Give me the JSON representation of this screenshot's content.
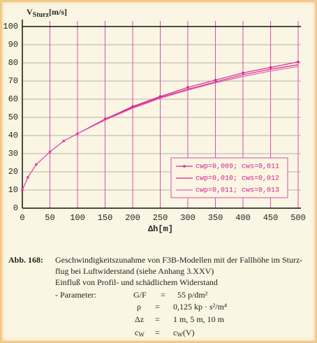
{
  "chart_data": {
    "type": "line",
    "ylabel": "V",
    "ylabel_sub": "Sturz",
    "ylabel_unit": "[m/s]",
    "xlabel": "Δh[m]",
    "x": [
      0,
      10,
      25,
      50,
      75,
      100,
      150,
      200,
      250,
      300,
      350,
      400,
      450,
      500
    ],
    "series": [
      {
        "name": "cwp=0,009; cws=0,011",
        "color": "#d9228f",
        "markers": true,
        "values": [
          10,
          17,
          24,
          31,
          37,
          41,
          49,
          56,
          61.5,
          66.5,
          70.5,
          74.5,
          77.5,
          80.5
        ]
      },
      {
        "name": "cwp=0,010; cws=0,012",
        "color": "#d9228f",
        "markers": false,
        "values": [
          10,
          17,
          24,
          31,
          37,
          41,
          49,
          55.5,
          61,
          65.5,
          69.5,
          73.5,
          76.5,
          79
        ]
      },
      {
        "name": "cwp=0,011; cws=0,013",
        "color": "#e060b0",
        "markers": false,
        "values": [
          10,
          17,
          24,
          31,
          37,
          41,
          48.5,
          55,
          60.5,
          65,
          69,
          72.5,
          75.5,
          78
        ]
      }
    ],
    "xlim": [
      0,
      500
    ],
    "xticks": [
      0,
      50,
      100,
      150,
      200,
      250,
      300,
      350,
      400,
      450,
      500
    ],
    "ylim": [
      0,
      100
    ],
    "yticks": [
      0,
      10,
      20,
      30,
      40,
      50,
      60,
      70,
      80,
      90,
      100
    ],
    "grid": true
  },
  "caption": {
    "label": "Abb. 168:",
    "lines": [
      "Geschwindigkeitszunahme von F3B-Modellen mit der Fallhöhe im Sturz-",
      "flug bei Luftwiderstand  (siehe Anhang  3.XXV)",
      "Einfluß von Profil- und schädlichem Widerstand"
    ],
    "param_label": "- Parameter:",
    "params": [
      [
        "G/F",
        "=",
        "55 p/dm²"
      ],
      [
        "ρ",
        "=",
        "0,125 kp · s²/m⁴"
      ],
      [
        "Δz",
        "=",
        "1 m,  5 m,  10 m"
      ]
    ],
    "last": {
      "c": "c",
      "sub": "W",
      "eq": "=",
      "rhs": "c",
      "rhs_sub": "W",
      "rhs_rest": "(V)"
    }
  }
}
